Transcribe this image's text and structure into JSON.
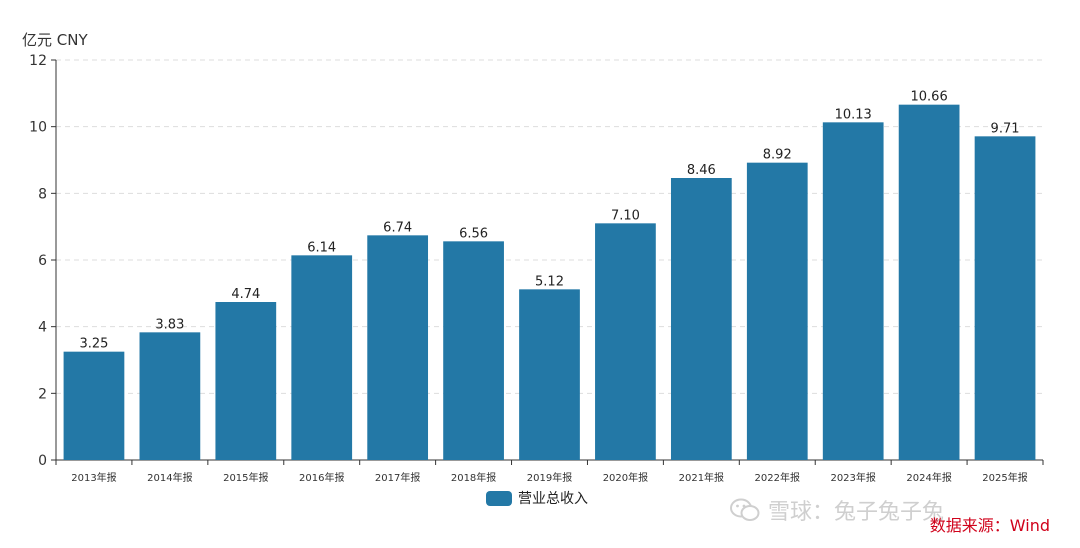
{
  "chart_data": {
    "type": "bar",
    "ylabel": "亿元  CNY",
    "categories": [
      "2013年报",
      "2014年报",
      "2015年报",
      "2016年报",
      "2017年报",
      "2018年报",
      "2019年报",
      "2020年报",
      "2021年报",
      "2022年报",
      "2023年报",
      "2024年报",
      "2025年报"
    ],
    "series": [
      {
        "name": "营业总收入",
        "values": [
          3.25,
          3.83,
          4.74,
          6.14,
          6.74,
          6.56,
          5.12,
          7.1,
          8.46,
          8.92,
          10.13,
          10.66,
          9.71
        ],
        "labels": [
          "3.25",
          "3.83",
          "4.74",
          "6.14",
          "6.74",
          "6.56",
          "5.12",
          "7.10",
          "8.46",
          "8.92",
          "10.13",
          "10.66",
          "9.71"
        ],
        "color": "#2378a6"
      }
    ],
    "ylim": [
      0,
      12
    ],
    "yticks": [
      "0",
      "2",
      "4",
      "6",
      "8",
      "10",
      "12"
    ],
    "grid": true,
    "legend_position": "bottom"
  },
  "source": "数据来源：Wind",
  "watermark": "雪球：兔子兔子兔"
}
